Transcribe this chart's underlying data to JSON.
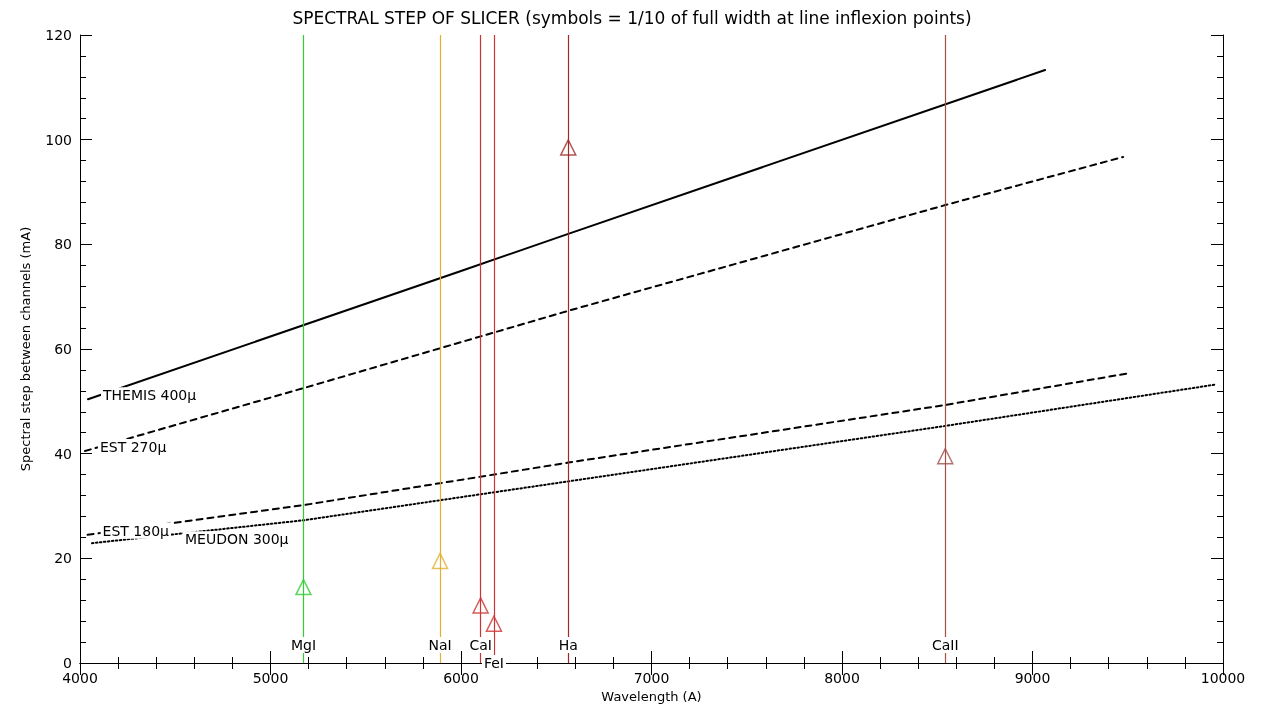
{
  "chart_data": {
    "type": "line",
    "title": "SPECTRAL STEP OF SLICER (symbols = 1/10 of full width at line inflexion points)",
    "xlabel": "Wavelength (A)",
    "ylabel": "Spectral step between channels (mA)",
    "xlim": [
      4000,
      10000
    ],
    "xticks": [
      4000,
      5000,
      6000,
      7000,
      8000,
      9000,
      10000
    ],
    "ylim": [
      0,
      120
    ],
    "yticks": [
      0,
      20,
      40,
      60,
      80,
      100,
      120
    ],
    "grid": false,
    "legend": false,
    "series": [
      {
        "name": "THEMIS 400μ",
        "color": "#000000",
        "line_style": "solid",
        "x": [
          4042,
          6000,
          6563,
          9066
        ],
        "values": [
          50.4,
          74.9,
          82.0,
          113.3
        ]
      },
      {
        "name": "EST 270μ",
        "color": "#000000",
        "line_style": "dashed",
        "x": [
          4026,
          5180,
          6563,
          8542,
          9476
        ],
        "values": [
          40.5,
          52.6,
          67.3,
          87.5,
          96.7
        ]
      },
      {
        "name": "EST 180μ",
        "color": "#000000",
        "line_style": "dashed",
        "x": [
          4040,
          5180,
          6563,
          8542,
          9510
        ],
        "values": [
          24.5,
          30.2,
          38.3,
          49.3,
          55.4
        ]
      },
      {
        "name": "MEUDON 300μ",
        "color": "#000000",
        "line_style": "dotted",
        "x": [
          4063,
          5180,
          8542,
          9960
        ],
        "values": [
          22.9,
          27.3,
          45.3,
          53.2
        ]
      },
      {
        "type": "scatter",
        "marker": "triangle",
        "x": [
          5173,
          5890,
          6103,
          6173,
          6563,
          8542
        ],
        "values": [
          14.5,
          19.5,
          11,
          7.5,
          98.5,
          39.5
        ],
        "colors": [
          "#33cc33",
          "#e0b030",
          "#cc3333",
          "#cc3333",
          "#a02828",
          "#a05048"
        ]
      }
    ],
    "ref_lines": [
      {
        "axis": "x",
        "value": 5173,
        "label": "MgI",
        "color": "#33cc33"
      },
      {
        "axis": "x",
        "value": 5890,
        "label": "NaI",
        "color": "#e0b030"
      },
      {
        "axis": "x",
        "value": 6103,
        "label": "CaI",
        "color": "#cc3333"
      },
      {
        "axis": "x",
        "value": 6173,
        "label": "FeI",
        "color": "#cc3333"
      },
      {
        "axis": "x",
        "value": 6563,
        "label": "Ha",
        "color": "#a02828"
      },
      {
        "axis": "x",
        "value": 8542,
        "label": "CaII",
        "color": "#a05048"
      }
    ]
  }
}
